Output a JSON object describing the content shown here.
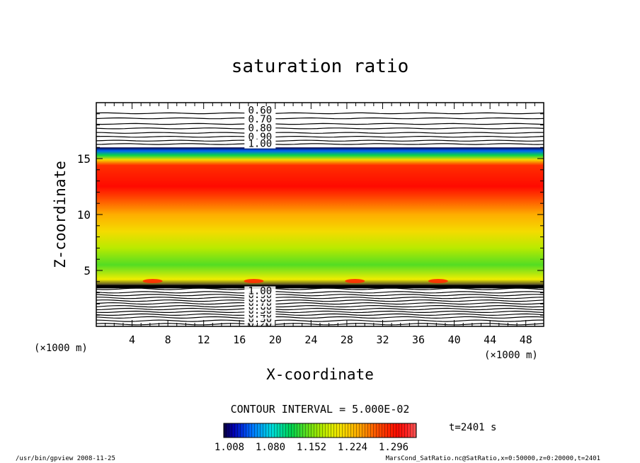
{
  "chart_data": {
    "type": "heatmap",
    "title": "saturation ratio",
    "xlabel": "X-coordinate",
    "ylabel": "Z-coordinate",
    "x_unit": "(×1000 m)",
    "y_unit": "(×1000 m)",
    "xlim": [
      0,
      50
    ],
    "ylim": [
      0,
      20
    ],
    "x_ticks": [
      4,
      8,
      12,
      16,
      20,
      24,
      28,
      32,
      36,
      40,
      44,
      48
    ],
    "y_ticks": [
      5,
      10,
      15
    ],
    "contour_labels_top": [
      "0.60",
      "0.70",
      "0.80",
      "0.90",
      "1.00"
    ],
    "contour_labels_bottom": [
      "0.20",
      "0.30",
      "0.40",
      "0.50",
      "0.60",
      "0.70",
      "0.80",
      "0.90",
      "1.00"
    ],
    "contour_interval_text": "CONTOUR INTERVAL = 5.000E-02",
    "colorbar_ticks": [
      "1.008",
      "1.080",
      "1.152",
      "1.224",
      "1.296"
    ],
    "colorbar_range": [
      1.008,
      1.32
    ],
    "time_label": "t=2401 s",
    "vertical_profile": [
      {
        "z": 3.5,
        "value": 1.008
      },
      {
        "z": 4.2,
        "value": 1.19
      },
      {
        "z": 5.5,
        "value": 1.14
      },
      {
        "z": 7.0,
        "value": 1.17
      },
      {
        "z": 8.5,
        "value": 1.2
      },
      {
        "z": 10.0,
        "value": 1.225
      },
      {
        "z": 11.5,
        "value": 1.26
      },
      {
        "z": 12.5,
        "value": 1.29
      },
      {
        "z": 13.5,
        "value": 1.28
      },
      {
        "z": 14.4,
        "value": 1.27
      },
      {
        "z": 14.9,
        "value": 1.2
      },
      {
        "z": 15.3,
        "value": 1.12
      },
      {
        "z": 15.7,
        "value": 1.05
      },
      {
        "z": 16.0,
        "value": 1.008
      }
    ],
    "grid": false
  },
  "footer": {
    "left": "/usr/bin/gpview   2008-11-25",
    "right": "MarsCond_SatRatio.nc@SatRatio,x=0:50000,z=0:20000,t=2401"
  }
}
